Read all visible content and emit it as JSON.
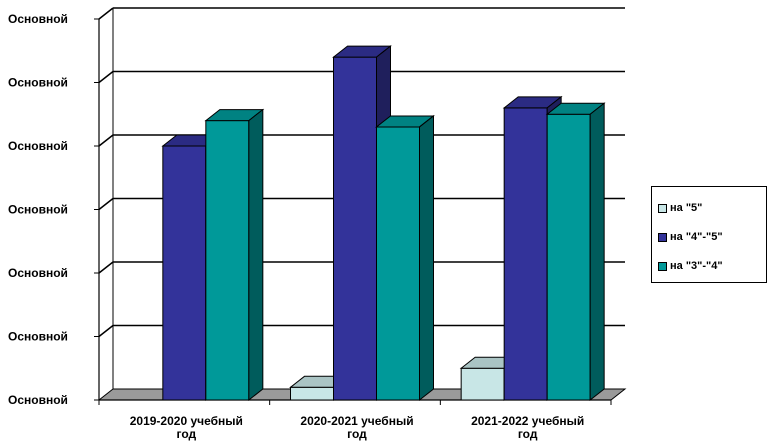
{
  "chart_data": {
    "type": "bar",
    "style": "3d-clustered-column",
    "categories": [
      "2019-2020 учебный год",
      "2020-2021 учебный год",
      "2021-2022 учебный год"
    ],
    "y_tick_labels": [
      "Основной",
      "Основной",
      "Основной",
      "Основной",
      "Основной",
      "Основной",
      "Основной"
    ],
    "ylim": [
      0,
      6
    ],
    "grid": true,
    "legend_position": "right",
    "series": [
      {
        "name": "на \"5\"",
        "values": [
          0,
          0.2,
          0.5
        ],
        "color": "#c8e6e6"
      },
      {
        "name": "на \"4\"-\"5\"",
        "values": [
          4.0,
          5.4,
          4.6
        ],
        "color": "#33339a"
      },
      {
        "name": "на \"3\"-\"4\"",
        "values": [
          4.4,
          4.3,
          4.5
        ],
        "color": "#009999"
      }
    ]
  }
}
